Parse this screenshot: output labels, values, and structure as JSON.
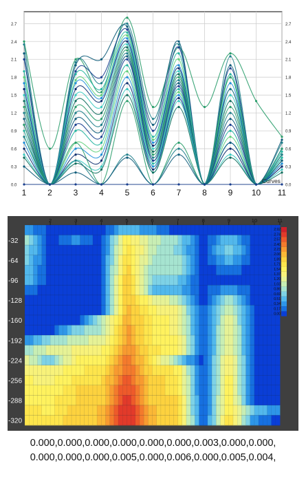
{
  "chart_data": [
    {
      "type": "line",
      "title": "",
      "legend_text": "Curves",
      "x": [
        1,
        2,
        3,
        4,
        5,
        6,
        7,
        8,
        9,
        10,
        11
      ],
      "xticks": [
        "1",
        "2",
        "3",
        "4",
        "5",
        "6",
        "7",
        "8",
        "9",
        "10",
        "11"
      ],
      "yticks": [
        "0.0",
        "0.3",
        "0.6",
        "0.9",
        "1.2",
        "1.5",
        "1.8",
        "2.1",
        "2.4",
        "2.7"
      ],
      "xlim": [
        1,
        11
      ],
      "ylim": [
        0,
        2.9
      ],
      "grid": true,
      "series_count": 24,
      "series": [
        {
          "values": [
            2.4,
            0.6,
            2.1,
            1.55,
            2.8,
            1.3,
            2.3,
            1.3,
            2.2,
            1.4,
            0.8
          ]
        },
        {
          "values": [
            2.35,
            0.0,
            2.05,
            1.7,
            2.7,
            1.1,
            2.35,
            0.0,
            2.15,
            0.0,
            0.7
          ]
        },
        {
          "values": [
            2.2,
            0.0,
            2.0,
            2.1,
            2.65,
            1.0,
            2.4,
            0.0,
            2.0,
            0.0,
            0.75
          ]
        },
        {
          "values": [
            2.1,
            0.0,
            1.9,
            1.8,
            2.6,
            0.9,
            2.3,
            0.0,
            1.95,
            0.0,
            0.6
          ]
        },
        {
          "values": [
            1.9,
            0.0,
            1.85,
            1.6,
            2.55,
            0.8,
            2.2,
            0.0,
            1.85,
            0.0,
            0.55
          ]
        },
        {
          "values": [
            1.8,
            0.0,
            1.75,
            1.5,
            2.5,
            0.75,
            2.1,
            0.0,
            1.8,
            0.0,
            0.5
          ]
        },
        {
          "values": [
            1.7,
            0.0,
            1.7,
            1.45,
            2.45,
            0.7,
            2.0,
            0.0,
            1.7,
            0.0,
            0.6
          ]
        },
        {
          "values": [
            1.6,
            0.0,
            1.6,
            1.4,
            2.4,
            0.65,
            1.95,
            0.0,
            1.6,
            0.0,
            0.5
          ]
        },
        {
          "values": [
            1.5,
            0.0,
            1.5,
            1.3,
            2.35,
            0.6,
            1.9,
            0.0,
            1.5,
            0.0,
            0.45
          ]
        },
        {
          "values": [
            1.4,
            0.0,
            1.4,
            1.2,
            2.3,
            0.55,
            1.85,
            0.0,
            1.4,
            0.0,
            0.4
          ]
        },
        {
          "values": [
            1.3,
            0.0,
            1.3,
            1.1,
            2.25,
            0.5,
            1.8,
            0.0,
            1.3,
            0.0,
            0.5
          ]
        },
        {
          "values": [
            1.2,
            0.0,
            1.2,
            1.0,
            2.2,
            0.45,
            1.75,
            0.0,
            1.2,
            0.0,
            0.4
          ]
        },
        {
          "values": [
            1.1,
            0.0,
            1.1,
            0.9,
            2.15,
            0.4,
            1.7,
            0.0,
            1.1,
            0.0,
            0.35
          ]
        },
        {
          "values": [
            1.0,
            0.0,
            1.0,
            0.8,
            2.1,
            0.4,
            1.65,
            0.0,
            1.0,
            0.0,
            0.3
          ]
        },
        {
          "values": [
            0.9,
            0.0,
            0.9,
            0.7,
            2.0,
            0.35,
            1.6,
            0.0,
            0.9,
            0.0,
            0.45
          ]
        },
        {
          "values": [
            0.8,
            0.0,
            0.7,
            0.6,
            1.9,
            0.3,
            1.55,
            0.0,
            0.8,
            0.0,
            0.4
          ]
        },
        {
          "values": [
            0.7,
            0.0,
            0.6,
            0.5,
            1.8,
            0.3,
            1.5,
            0.0,
            0.7,
            0.0,
            0.35
          ]
        },
        {
          "values": [
            0.6,
            0.0,
            0.5,
            0.4,
            1.7,
            0.25,
            1.45,
            0.0,
            0.6,
            0.0,
            0.3
          ]
        },
        {
          "values": [
            0.5,
            0.0,
            0.4,
            0.3,
            1.6,
            0.2,
            1.4,
            0.0,
            0.5,
            0.0,
            0.25
          ]
        },
        {
          "values": [
            0.45,
            0.0,
            0.35,
            0.25,
            1.5,
            0.2,
            1.3,
            0.0,
            0.45,
            0.0,
            0.2
          ]
        },
        {
          "values": [
            1.0,
            0.0,
            0.7,
            0.0,
            1.4,
            0.0,
            0.7,
            0.0,
            1.8,
            0.0,
            0.6
          ]
        },
        {
          "values": [
            0.8,
            0.0,
            0.4,
            0.0,
            0.5,
            0.0,
            0.6,
            0.0,
            1.6,
            0.0,
            0.5
          ]
        },
        {
          "values": [
            0.3,
            0.0,
            0.2,
            0.0,
            0.45,
            0.0,
            0.5,
            0.0,
            0.7,
            0.0,
            0.4
          ]
        },
        {
          "values": [
            0.0,
            0.0,
            0.0,
            0.0,
            0.0,
            0.0,
            0.0,
            0.0,
            0.0,
            0.0,
            0.0
          ]
        }
      ],
      "colors": [
        "#2a9d6b",
        "#1e7f8a",
        "#0e5c7a",
        "#1a3f8f",
        "#24b4a0",
        "#5fd07a",
        "#1f8fd8",
        "#0b2d6e",
        "#38c9c0",
        "#0f6e5e"
      ]
    },
    {
      "type": "heatmap",
      "title": "",
      "xticks": [
        "2",
        "3",
        "4",
        "5",
        "6",
        "7",
        "8",
        "9",
        "10",
        "11"
      ],
      "yticks": [
        "-32",
        "-64",
        "-96",
        "-128",
        "-160",
        "-192",
        "-224",
        "-256",
        "-288",
        "-320"
      ],
      "x": [
        1,
        2,
        3,
        4,
        5,
        6,
        7,
        8,
        9,
        10,
        11
      ],
      "y_rows": [
        -16,
        -32,
        -48,
        -64,
        -80,
        -96,
        -112,
        -128,
        -144,
        -160,
        -176,
        -192,
        -208,
        -224,
        -240,
        -256,
        -272,
        -288,
        -304,
        -320
      ],
      "colorbar_ticks": [
        "2.92",
        "2.74",
        "2.57",
        "2.40",
        "2.23",
        "2.06",
        "1.89",
        "1.71",
        "1.54",
        "1.37",
        "1.20",
        "1.03",
        "0.86",
        "0.69",
        "0.51",
        "0.34",
        "0.17",
        "0.00"
      ],
      "colorbar_colors": [
        "#d0202a",
        "#e23a2a",
        "#ee5a2a",
        "#f47a2c",
        "#f89a30",
        "#fbb836",
        "#fdd23e",
        "#fee54c",
        "#fff25e",
        "#f8f27a",
        "#e6f296",
        "#c8eeb4",
        "#a6e4d0",
        "#7ed2e6",
        "#52b8ec",
        "#2e96e8",
        "#1670e0",
        "#0a3ed6"
      ],
      "grid": [
        [
          0.4,
          0.0,
          0.0,
          0.0,
          0.6,
          0.3,
          0.0,
          0.0,
          0.0,
          0.0,
          0.0
        ],
        [
          0.9,
          0.0,
          0.3,
          0.0,
          1.6,
          1.0,
          0.8,
          0.0,
          0.6,
          0.0,
          0.0
        ],
        [
          0.8,
          0.0,
          0.0,
          0.0,
          1.7,
          1.0,
          0.7,
          0.0,
          0.8,
          0.0,
          0.0
        ],
        [
          0.7,
          0.0,
          0.0,
          0.0,
          1.8,
          0.9,
          0.9,
          0.0,
          0.5,
          0.0,
          0.0
        ],
        [
          0.6,
          0.0,
          0.0,
          0.0,
          1.9,
          0.8,
          0.9,
          0.0,
          0.2,
          0.0,
          0.0
        ],
        [
          0.6,
          0.0,
          0.0,
          0.0,
          2.0,
          0.7,
          0.6,
          0.0,
          0.0,
          0.0,
          0.0
        ],
        [
          0.2,
          0.0,
          0.0,
          0.0,
          2.0,
          0.6,
          0.5,
          0.0,
          0.4,
          0.0,
          0.0
        ],
        [
          0.0,
          0.0,
          0.0,
          0.0,
          2.0,
          1.3,
          1.0,
          0.0,
          1.0,
          0.0,
          0.0
        ],
        [
          0.0,
          0.0,
          0.0,
          0.0,
          2.1,
          1.5,
          1.3,
          0.0,
          1.2,
          0.0,
          0.0
        ],
        [
          0.0,
          0.0,
          0.0,
          0.9,
          2.1,
          1.6,
          1.4,
          0.0,
          1.3,
          0.0,
          0.0
        ],
        [
          0.0,
          0.0,
          0.7,
          0.9,
          2.2,
          1.6,
          1.4,
          0.0,
          1.4,
          0.0,
          0.0
        ],
        [
          0.3,
          0.8,
          1.0,
          1.2,
          2.2,
          1.6,
          1.5,
          0.0,
          1.4,
          0.0,
          0.0
        ],
        [
          0.8,
          1.2,
          1.3,
          1.4,
          2.3,
          1.7,
          1.5,
          0.0,
          1.4,
          0.0,
          0.0
        ],
        [
          1.2,
          0.6,
          1.5,
          1.5,
          2.4,
          1.7,
          0.7,
          0.0,
          1.5,
          0.0,
          0.0
        ],
        [
          1.4,
          1.3,
          1.6,
          1.7,
          2.5,
          1.8,
          1.6,
          0.0,
          1.5,
          0.0,
          0.0
        ],
        [
          1.5,
          1.4,
          1.7,
          1.8,
          2.6,
          1.9,
          1.7,
          0.0,
          1.6,
          0.0,
          0.0
        ],
        [
          1.6,
          1.5,
          1.8,
          1.9,
          2.7,
          1.9,
          1.7,
          0.0,
          1.6,
          0.0,
          0.0
        ],
        [
          1.6,
          1.6,
          1.8,
          1.9,
          2.8,
          1.9,
          1.8,
          0.0,
          1.7,
          0.0,
          0.0
        ],
        [
          1.7,
          1.6,
          1.9,
          2.0,
          2.9,
          2.0,
          1.8,
          0.0,
          1.7,
          0.6,
          0.3
        ],
        [
          1.7,
          1.7,
          1.9,
          2.0,
          2.9,
          2.0,
          1.9,
          0.0,
          1.8,
          0.3,
          0.0
        ]
      ]
    }
  ],
  "data_text": {
    "line1": "0.000,0.000,0.000,0.000,0.000,0.000,0.003,0.000,0.000,",
    "line2": "0.000,0.000,0.000,0.005,0.000,0.006,0.000,0.005,0.004,"
  }
}
